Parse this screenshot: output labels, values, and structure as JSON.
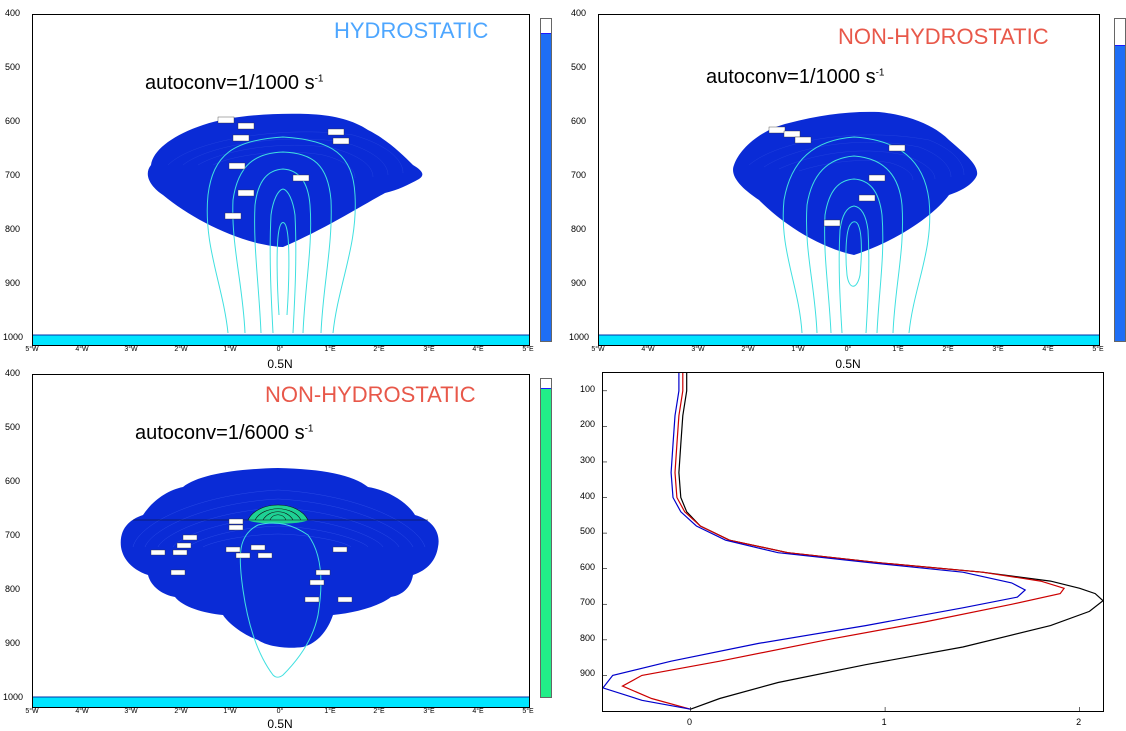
{
  "chart_data": [
    {
      "type": "contour",
      "title": "HYDROSTATIC",
      "title_color": "#4da6ff",
      "subtitle_base": "autoconv=1/1000 s",
      "subtitle_exp": "-1",
      "xlabel": "0.5N",
      "x_ticks": [
        "5°W",
        "4°W",
        "3°W",
        "2°W",
        "1°W",
        "0°",
        "1°E",
        "2°E",
        "3°E",
        "4°E",
        "5°E"
      ],
      "y_ticks": [
        "400",
        "500",
        "600",
        "700",
        "800",
        "900",
        "1000"
      ],
      "ylim": [
        1010,
        400
      ],
      "fill_color": "#0a2bd6",
      "colorbar_color": "#1e6ef5",
      "contour_color": "#40e0e0"
    },
    {
      "type": "contour",
      "title": "NON-HYDROSTATIC",
      "title_color": "#e8584a",
      "subtitle_base": "autoconv=1/1000 s",
      "subtitle_exp": "-1",
      "xlabel": "0.5N",
      "x_ticks": [
        "5°W",
        "4°W",
        "3°W",
        "2°W",
        "1°W",
        "0°",
        "1°E",
        "2°E",
        "3°E",
        "4°E",
        "5°E"
      ],
      "y_ticks": [
        "400",
        "500",
        "600",
        "700",
        "800",
        "900",
        "1000"
      ],
      "ylim": [
        1010,
        400
      ],
      "fill_color": "#0a2bd6",
      "colorbar_color": "#1e6ef5",
      "contour_color": "#40e0e0"
    },
    {
      "type": "contour",
      "title": "NON-HYDROSTATIC",
      "title_color": "#e8584a",
      "subtitle_base": "autoconv=1/6000 s",
      "subtitle_exp": "-1",
      "xlabel": "0.5N",
      "x_ticks": [
        "5°W",
        "4°W",
        "3°W",
        "2°W",
        "1°W",
        "0°",
        "1°E",
        "2°E",
        "3°E",
        "4°E",
        "5°E"
      ],
      "y_ticks": [
        "400",
        "500",
        "600",
        "700",
        "800",
        "900",
        "1000"
      ],
      "ylim": [
        1010,
        400
      ],
      "fill_color": "#0a2bd6",
      "colorbar_color": "#22ee88",
      "contour_color": "#40e0e0"
    },
    {
      "type": "line",
      "x_ticks": [
        0,
        1,
        2
      ],
      "y_ticks": [
        100,
        200,
        300,
        400,
        500,
        600,
        700,
        800,
        900
      ],
      "xlim": [
        -0.45,
        2.12
      ],
      "ylim": [
        50,
        1000
      ],
      "series": [
        {
          "color": "#000000",
          "x": [
            -0.02,
            -0.02,
            -0.04,
            -0.05,
            -0.06,
            -0.05,
            -0.02,
            0.05,
            0.2,
            0.5,
            1.0,
            1.5,
            1.85,
            2.0,
            2.08,
            2.12,
            2.05,
            1.85,
            1.4,
            0.9,
            0.45,
            0.15,
            0.0
          ],
          "y": [
            50,
            100,
            170,
            250,
            330,
            400,
            440,
            480,
            520,
            555,
            585,
            610,
            635,
            655,
            670,
            690,
            720,
            760,
            820,
            870,
            920,
            965,
            995
          ]
        },
        {
          "color": "#cc0000",
          "x": [
            -0.04,
            -0.04,
            -0.06,
            -0.07,
            -0.08,
            -0.07,
            -0.03,
            0.05,
            0.2,
            0.5,
            1.0,
            1.5,
            1.8,
            1.92,
            1.9,
            1.65,
            1.2,
            0.7,
            0.15,
            -0.25,
            -0.35,
            -0.2,
            0.0
          ],
          "y": [
            50,
            100,
            170,
            250,
            330,
            400,
            440,
            480,
            520,
            555,
            585,
            610,
            635,
            655,
            670,
            700,
            750,
            800,
            860,
            900,
            930,
            965,
            995
          ]
        },
        {
          "color": "#0000cc",
          "x": [
            -0.06,
            -0.06,
            -0.08,
            -0.09,
            -0.1,
            -0.09,
            -0.05,
            0.03,
            0.18,
            0.45,
            0.95,
            1.4,
            1.65,
            1.72,
            1.68,
            1.4,
            0.9,
            0.35,
            -0.1,
            -0.4,
            -0.45,
            -0.25,
            0.0
          ],
          "y": [
            50,
            100,
            170,
            250,
            330,
            400,
            440,
            480,
            520,
            555,
            585,
            610,
            640,
            660,
            680,
            710,
            760,
            810,
            860,
            900,
            935,
            970,
            995
          ]
        }
      ]
    }
  ]
}
